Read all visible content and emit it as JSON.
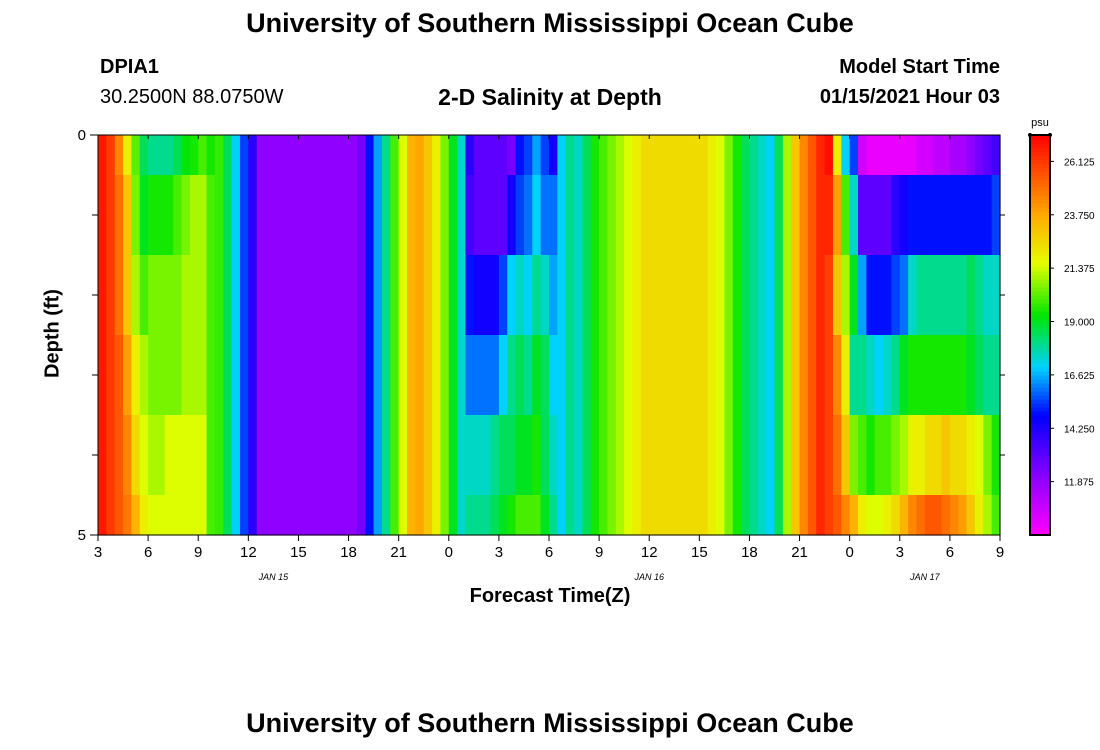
{
  "header": {
    "title": "University of Southern Mississippi Ocean Cube",
    "footer_title": "University of Southern Mississippi Ocean Cube",
    "station_id": "DPIA1",
    "station_coords": "30.2500N 88.0750W",
    "plot_title": "2-D Salinity at Depth",
    "model_start_label": "Model Start Time",
    "model_start_value": "01/15/2021 Hour 03"
  },
  "chart_data": {
    "type": "heatmap",
    "title": "2-D Salinity at Depth",
    "xlabel": "Forecast Time(Z)",
    "ylabel": "Depth (ft)",
    "x_hours_range": [
      0,
      54
    ],
    "y_range": [
      0,
      5
    ],
    "y_tick_labels": [
      {
        "value": 0,
        "label": "0"
      },
      {
        "value": 5,
        "label": "5"
      }
    ],
    "y_minor_ticks": [
      1,
      2,
      3,
      4
    ],
    "x_ticks": [
      {
        "hour": 0,
        "label": "3"
      },
      {
        "hour": 3,
        "label": "6"
      },
      {
        "hour": 6,
        "label": "9"
      },
      {
        "hour": 9,
        "label": "12"
      },
      {
        "hour": 12,
        "label": "15"
      },
      {
        "hour": 15,
        "label": "18"
      },
      {
        "hour": 18,
        "label": "21"
      },
      {
        "hour": 21,
        "label": "0"
      },
      {
        "hour": 24,
        "label": "3"
      },
      {
        "hour": 27,
        "label": "6"
      },
      {
        "hour": 30,
        "label": "9"
      },
      {
        "hour": 33,
        "label": "12"
      },
      {
        "hour": 36,
        "label": "15"
      },
      {
        "hour": 39,
        "label": "18"
      },
      {
        "hour": 42,
        "label": "21"
      },
      {
        "hour": 45,
        "label": "0"
      },
      {
        "hour": 48,
        "label": "3"
      },
      {
        "hour": 51,
        "label": "6"
      },
      {
        "hour": 54,
        "label": "9"
      }
    ],
    "date_labels": [
      {
        "hour": 10.5,
        "label": "JAN 15"
      },
      {
        "hour": 33,
        "label": "JAN 16"
      },
      {
        "hour": 49.5,
        "label": "JAN 17"
      }
    ],
    "colorbar": {
      "unit": "psu",
      "min": 9.5,
      "max": 27.3,
      "tick_labels": [
        "26.125",
        "23.750",
        "21.375",
        "19.000",
        "16.625",
        "14.250",
        "11.875"
      ],
      "tick_values": [
        26.125,
        23.75,
        21.375,
        19.0,
        16.625,
        14.25,
        11.875
      ]
    },
    "column_width_hours": 0.5,
    "rows_depth_ft": [
      0,
      0.5,
      1.5,
      2.5,
      3.5,
      4.5
    ],
    "salinity_psu": [
      [
        26.8,
        26.1,
        24.5,
        22.0,
        20.2,
        18.5,
        18.0,
        18.0,
        18.0,
        18.5,
        19.2,
        19.5,
        20.0,
        19.5,
        19.8,
        18.5,
        17.0,
        15.5,
        14.0,
        12.0,
        12.0,
        12.0,
        12.0,
        12.0,
        12.0,
        12.0,
        12.0,
        12.0,
        12.0,
        12.0,
        12.0,
        12.5,
        15.0,
        16.5,
        18.0,
        20.0,
        21.5,
        23.5,
        23.8,
        23.0,
        22.0,
        20.5,
        19.0,
        17.5,
        14.0,
        13.0,
        13.0,
        13.0,
        13.0,
        12.5,
        15.0,
        15.5,
        16.5,
        15.5,
        14.5,
        17.0,
        18.0,
        17.5,
        18.5,
        19.5,
        20.0,
        20.5,
        21.0,
        21.5,
        22.0,
        22.5,
        22.5,
        22.5,
        22.5,
        22.5,
        22.5,
        22.5,
        22.5,
        22.0,
        21.5,
        20.5,
        19.5,
        18.5,
        18.0,
        17.5,
        17.0,
        18.5,
        21.0,
        23.0,
        24.5,
        25.5,
        26.5,
        27.0,
        22.0,
        17.0,
        15.5,
        10.5,
        10.0,
        10.0,
        10.0,
        10.0,
        10.0,
        10.0,
        10.5,
        10.5,
        11.0,
        11.0,
        11.5,
        11.5,
        12.0,
        12.5,
        13.0,
        13.5
      ],
      [
        26.8,
        26.1,
        25.0,
        23.0,
        20.5,
        19.0,
        19.5,
        19.5,
        19.5,
        20.0,
        20.5,
        21.0,
        21.0,
        20.0,
        19.8,
        18.5,
        17.0,
        15.5,
        14.0,
        12.0,
        12.0,
        12.0,
        12.0,
        12.0,
        12.0,
        12.0,
        12.0,
        12.0,
        12.0,
        12.0,
        12.0,
        12.5,
        15.0,
        16.5,
        18.0,
        20.0,
        21.5,
        23.5,
        23.8,
        23.0,
        22.0,
        20.5,
        19.0,
        17.5,
        13.5,
        13.0,
        13.0,
        13.0,
        13.0,
        14.5,
        15.5,
        16.0,
        17.0,
        16.0,
        16.0,
        17.0,
        18.0,
        17.5,
        18.5,
        19.5,
        20.0,
        20.5,
        21.0,
        21.5,
        22.0,
        22.5,
        22.5,
        22.5,
        22.5,
        22.5,
        22.5,
        22.5,
        22.5,
        22.0,
        21.5,
        20.5,
        19.5,
        18.5,
        18.0,
        17.5,
        17.0,
        18.5,
        21.0,
        23.0,
        24.5,
        25.5,
        26.5,
        26.5,
        24.0,
        20.0,
        17.5,
        13.0,
        13.0,
        13.0,
        13.0,
        14.0,
        14.5,
        15.0,
        15.0,
        15.0,
        15.0,
        15.0,
        15.0,
        15.0,
        15.0,
        15.0,
        15.0,
        15.5
      ],
      [
        26.8,
        26.1,
        25.0,
        23.0,
        21.0,
        20.0,
        20.5,
        20.5,
        20.5,
        20.5,
        21.0,
        21.0,
        21.0,
        20.0,
        19.8,
        18.5,
        17.0,
        15.5,
        14.0,
        12.0,
        12.0,
        12.0,
        12.0,
        12.0,
        12.0,
        12.0,
        12.0,
        12.0,
        12.0,
        12.0,
        12.0,
        12.5,
        15.0,
        16.5,
        18.0,
        20.0,
        21.5,
        23.5,
        23.8,
        23.0,
        22.0,
        20.5,
        19.0,
        17.5,
        15.0,
        14.5,
        14.5,
        14.5,
        15.5,
        17.0,
        17.5,
        17.0,
        18.0,
        17.5,
        16.5,
        17.0,
        18.0,
        17.5,
        18.5,
        19.5,
        20.0,
        20.5,
        21.0,
        21.5,
        22.0,
        22.5,
        22.5,
        22.5,
        22.5,
        22.5,
        22.5,
        22.5,
        22.5,
        22.0,
        21.5,
        20.5,
        19.5,
        18.5,
        18.0,
        17.5,
        17.0,
        18.5,
        21.0,
        23.0,
        24.5,
        25.5,
        26.5,
        26.0,
        23.0,
        21.0,
        19.0,
        16.5,
        15.0,
        15.0,
        15.0,
        15.5,
        16.0,
        17.5,
        18.0,
        18.0,
        18.0,
        18.0,
        18.0,
        18.0,
        18.5,
        18.0,
        17.5,
        17.5
      ],
      [
        26.8,
        26.1,
        25.5,
        24.0,
        22.0,
        21.0,
        20.5,
        20.5,
        20.5,
        20.5,
        21.0,
        21.0,
        21.0,
        20.0,
        19.8,
        18.5,
        17.0,
        15.5,
        14.0,
        12.0,
        12.0,
        12.0,
        12.0,
        12.0,
        12.0,
        12.0,
        12.0,
        12.0,
        12.0,
        12.0,
        12.0,
        12.5,
        15.0,
        16.5,
        18.0,
        20.0,
        21.5,
        23.5,
        23.8,
        23.0,
        22.0,
        20.5,
        19.0,
        17.5,
        16.0,
        16.0,
        16.0,
        16.0,
        17.0,
        18.0,
        18.5,
        18.0,
        19.0,
        18.5,
        17.0,
        17.0,
        18.0,
        17.5,
        18.5,
        19.5,
        20.0,
        20.5,
        21.0,
        21.5,
        22.0,
        22.5,
        22.5,
        22.5,
        22.5,
        22.5,
        22.5,
        22.5,
        22.5,
        22.0,
        21.5,
        20.5,
        19.5,
        18.5,
        18.0,
        17.5,
        17.0,
        18.5,
        21.0,
        23.0,
        24.5,
        25.5,
        26.5,
        26.0,
        24.5,
        22.0,
        18.0,
        18.0,
        17.5,
        17.0,
        17.5,
        18.0,
        19.0,
        19.5,
        19.5,
        19.5,
        19.5,
        19.5,
        19.5,
        19.5,
        19.0,
        18.5,
        18.0,
        18.0
      ],
      [
        26.8,
        26.1,
        25.5,
        24.5,
        22.5,
        21.5,
        21.0,
        21.0,
        21.5,
        21.5,
        21.5,
        21.5,
        21.5,
        20.0,
        19.8,
        18.5,
        17.0,
        15.5,
        14.0,
        12.0,
        12.0,
        12.0,
        12.0,
        12.0,
        12.0,
        12.0,
        12.0,
        12.0,
        12.0,
        12.0,
        12.0,
        12.5,
        15.0,
        16.5,
        18.0,
        20.0,
        21.5,
        23.5,
        23.8,
        23.0,
        22.0,
        20.5,
        19.0,
        17.5,
        17.5,
        17.5,
        17.5,
        18.0,
        18.5,
        18.5,
        19.0,
        19.0,
        19.5,
        18.5,
        17.5,
        17.0,
        18.0,
        17.5,
        18.5,
        19.5,
        20.0,
        20.5,
        21.0,
        21.5,
        22.0,
        22.5,
        22.5,
        22.5,
        22.5,
        22.5,
        22.5,
        22.5,
        22.5,
        22.0,
        21.5,
        20.5,
        19.5,
        18.5,
        18.0,
        17.5,
        17.0,
        18.5,
        21.0,
        23.0,
        24.5,
        25.5,
        26.5,
        26.0,
        25.0,
        23.0,
        20.5,
        20.0,
        19.5,
        20.0,
        20.0,
        20.5,
        21.0,
        22.0,
        22.0,
        22.5,
        22.5,
        23.0,
        22.5,
        22.5,
        22.0,
        21.5,
        20.5,
        19.5
      ],
      [
        26.8,
        26.1,
        25.5,
        24.8,
        23.5,
        22.0,
        21.5,
        21.5,
        21.5,
        21.5,
        21.5,
        21.5,
        21.5,
        20.0,
        19.8,
        18.5,
        17.0,
        15.5,
        14.0,
        12.0,
        12.0,
        12.0,
        12.0,
        12.0,
        12.0,
        12.0,
        12.0,
        12.0,
        12.0,
        12.0,
        12.0,
        12.5,
        15.0,
        16.5,
        18.0,
        20.0,
        21.5,
        23.5,
        23.8,
        23.0,
        22.0,
        20.5,
        19.0,
        17.5,
        18.0,
        18.0,
        18.0,
        18.5,
        19.0,
        19.5,
        20.0,
        20.0,
        20.0,
        19.0,
        18.0,
        17.0,
        18.0,
        17.5,
        18.5,
        19.5,
        20.0,
        20.5,
        21.0,
        21.5,
        22.0,
        22.5,
        22.5,
        22.5,
        22.5,
        22.5,
        22.5,
        22.5,
        22.5,
        22.0,
        21.5,
        20.5,
        19.5,
        18.5,
        18.0,
        17.5,
        17.0,
        18.5,
        21.0,
        23.0,
        24.5,
        25.5,
        26.5,
        26.0,
        25.5,
        24.5,
        23.5,
        22.0,
        21.5,
        21.5,
        22.0,
        22.5,
        23.5,
        24.5,
        25.0,
        25.5,
        25.5,
        25.0,
        24.5,
        24.0,
        23.0,
        22.0,
        21.0,
        20.0
      ]
    ]
  }
}
